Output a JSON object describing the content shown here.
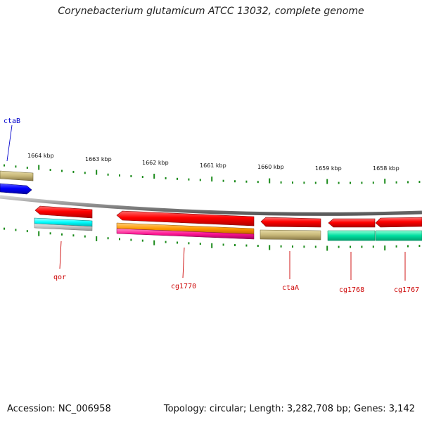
{
  "title": "Corynebacterium glutamicum ATCC 13032, complete genome",
  "footer": {
    "accession": "Accession: NC_006958",
    "summary": "Topology: circular; Length: 3,282,708 bp; Genes: 3,142"
  },
  "scale_labels": [
    "1664 kbp",
    "1663 kbp",
    "1662 kbp",
    "1661 kbp",
    "1660 kbp",
    "1659 kbp",
    "1658 kbp"
  ],
  "gene_labels": {
    "ctaB": "ctaB",
    "qor": "qor",
    "cg1770": "cg1770",
    "ctaA": "ctaA",
    "cg1768": "cg1768",
    "cg1767": "cg1767"
  },
  "colors": {
    "red": "#ff0000",
    "blue": "#0000ff",
    "cyan": "#00ffff",
    "orange": "#ff9900",
    "magenta": "#ff1493",
    "khaki": "#c8b878",
    "teal": "#00e0a0",
    "backbone": "#888888",
    "tick": "#1a8a1a",
    "label_red": "#cc0000",
    "label_blue": "#0000cc"
  }
}
